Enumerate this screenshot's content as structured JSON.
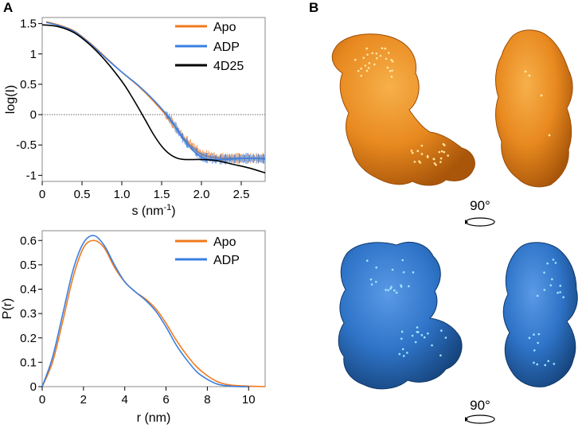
{
  "panels": {
    "a_label": "A",
    "b_label": "B"
  },
  "colors": {
    "apo": "#f07a1e",
    "adp": "#3a7fe0",
    "model": "#000000",
    "apo_surface": "#e8891f",
    "adp_surface": "#2f74c8"
  },
  "chart_data": [
    {
      "type": "line",
      "xlabel": "s (nm",
      "xlabel_sup": "-1",
      "xlabel_tail": ")",
      "ylabel": "log(I)",
      "xlim": [
        0,
        2.8
      ],
      "ylim": [
        -1.1,
        1.6
      ],
      "xticks": [
        0,
        0.5,
        1.0,
        1.5,
        2.0,
        2.5
      ],
      "xtick_labels": [
        "0",
        "0.5",
        "1.0",
        "1.5",
        "2.0",
        "2.5"
      ],
      "yticks": [
        -1,
        -0.5,
        0,
        0.5,
        1,
        1.5
      ],
      "ytick_labels": [
        "-1",
        "-0.5",
        "0",
        "0.5",
        "1",
        "1.5"
      ],
      "reference_line": 0,
      "legend_position": "top-right",
      "series": [
        {
          "name": "Apo",
          "color": "#f07a1e",
          "noisy": true,
          "x": [
            0.05,
            0.2,
            0.4,
            0.6,
            0.8,
            1.0,
            1.2,
            1.4,
            1.6,
            1.8,
            2.0,
            2.2,
            2.4,
            2.6,
            2.8
          ],
          "y": [
            1.53,
            1.48,
            1.38,
            1.18,
            0.94,
            0.7,
            0.48,
            0.22,
            -0.08,
            -0.42,
            -0.65,
            -0.71,
            -0.72,
            -0.72,
            -0.72
          ]
        },
        {
          "name": "ADP",
          "color": "#3a7fe0",
          "noisy": true,
          "x": [
            0.05,
            0.2,
            0.4,
            0.6,
            0.8,
            1.0,
            1.2,
            1.4,
            1.6,
            1.8,
            2.0,
            2.2,
            2.4,
            2.6,
            2.8
          ],
          "y": [
            1.52,
            1.47,
            1.37,
            1.17,
            0.93,
            0.7,
            0.49,
            0.24,
            -0.06,
            -0.45,
            -0.7,
            -0.74,
            -0.73,
            -0.72,
            -0.73
          ]
        },
        {
          "name": "4D25",
          "color": "#000000",
          "noisy": false,
          "x": [
            0,
            0.2,
            0.4,
            0.6,
            0.8,
            1.0,
            1.1,
            1.2,
            1.3,
            1.4,
            1.5,
            1.6,
            1.7,
            1.8,
            2.0,
            2.2,
            2.4,
            2.6,
            2.8
          ],
          "y": [
            1.48,
            1.45,
            1.35,
            1.15,
            0.88,
            0.55,
            0.35,
            0.13,
            -0.1,
            -0.33,
            -0.52,
            -0.65,
            -0.72,
            -0.74,
            -0.74,
            -0.76,
            -0.82,
            -0.88,
            -0.96
          ]
        }
      ]
    },
    {
      "type": "line",
      "xlabel": "r (nm)",
      "ylabel": "P(r)",
      "xlim": [
        0,
        10.8
      ],
      "ylim": [
        0,
        0.64
      ],
      "xticks": [
        0,
        2,
        4,
        6,
        8,
        10
      ],
      "xtick_labels": [
        "0",
        "2",
        "4",
        "6",
        "8",
        "10"
      ],
      "yticks": [
        0,
        0.1,
        0.2,
        0.3,
        0.4,
        0.5,
        0.6
      ],
      "ytick_labels": [
        "0",
        "0.1",
        "0.2",
        "0.3",
        "0.4",
        "0.5",
        "0.6"
      ],
      "legend_position": "top-right",
      "series": [
        {
          "name": "Apo",
          "color": "#f07a1e",
          "x": [
            0,
            0.5,
            1.0,
            1.5,
            2.0,
            2.5,
            3.0,
            3.5,
            4.0,
            4.5,
            5.0,
            5.5,
            6.0,
            6.5,
            7.0,
            7.5,
            8.0,
            8.5,
            9.0,
            9.5,
            10.0,
            10.8
          ],
          "y": [
            0,
            0.1,
            0.27,
            0.45,
            0.57,
            0.6,
            0.57,
            0.49,
            0.43,
            0.39,
            0.36,
            0.32,
            0.26,
            0.19,
            0.13,
            0.08,
            0.045,
            0.02,
            0.008,
            0.004,
            0.002,
            0
          ]
        },
        {
          "name": "ADP",
          "color": "#3a7fe0",
          "x": [
            0,
            0.5,
            1.0,
            1.5,
            2.0,
            2.5,
            3.0,
            3.5,
            4.0,
            4.5,
            5.0,
            5.5,
            6.0,
            6.5,
            7.0,
            7.5,
            8.0,
            8.5,
            9.0,
            9.5,
            10.0
          ],
          "y": [
            0,
            0.12,
            0.3,
            0.48,
            0.59,
            0.62,
            0.58,
            0.5,
            0.43,
            0.39,
            0.355,
            0.31,
            0.245,
            0.17,
            0.11,
            0.06,
            0.03,
            0.01,
            0.003,
            0,
            0
          ]
        }
      ]
    }
  ],
  "structures": {
    "angle_label": "90°",
    "views": [
      {
        "state": "Apo",
        "view": "front",
        "color": "#e8891f"
      },
      {
        "state": "Apo",
        "view": "side",
        "color": "#e8891f"
      },
      {
        "state": "ADP",
        "view": "front",
        "color": "#2f74c8"
      },
      {
        "state": "ADP",
        "view": "side",
        "color": "#2f74c8"
      }
    ]
  }
}
